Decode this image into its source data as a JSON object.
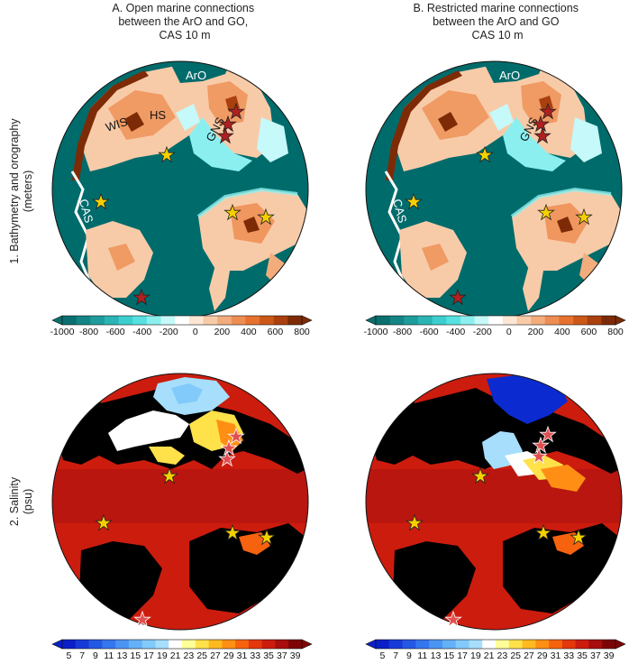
{
  "columns": [
    {
      "id": "A",
      "title_lines": [
        "A. Open marine connections",
        "between the ArO and GO,",
        "CAS 10 m"
      ]
    },
    {
      "id": "B",
      "title_lines": [
        "B. Restricted marine connections",
        "between  the ArO and GO",
        "CAS 10 m"
      ]
    }
  ],
  "rows": [
    {
      "id": "1",
      "label_lines": [
        "1. Bathymetry  and orography",
        "(meters)"
      ]
    },
    {
      "id": "2",
      "label_lines": [
        "2. Salinity",
        "(psu)"
      ]
    }
  ],
  "map_labels": {
    "aro": "ArO",
    "wis": "WIS",
    "hs": "HS",
    "gns": "GNS",
    "cas": "CAS"
  },
  "colors": {
    "ocean": "#006b6b",
    "land_mask": "#000000",
    "salinity_high": "#c81e1e",
    "salinity_low": "#0b2bd0",
    "star_yellow": "#f5d000",
    "star_red": "#b02020"
  },
  "chart_data": [
    {
      "type": "heatmap",
      "name": "bathymetry-orography",
      "colorbar": {
        "ticks": [
          "-1000",
          "-800",
          "-600",
          "-400",
          "-200",
          "0",
          "200",
          "400",
          "600",
          "800"
        ],
        "colors": [
          "#0a6f6f",
          "#138585",
          "#1e9c9c",
          "#2ab4b4",
          "#3ccece",
          "#56e0e0",
          "#8cefef",
          "#c6f9f9",
          "#ffffff",
          "#fde6d4",
          "#f8cba8",
          "#f3ac7c",
          "#ee8d52",
          "#e6722e",
          "#cc5818",
          "#a9400e",
          "#7d2b06"
        ]
      }
    },
    {
      "type": "heatmap",
      "name": "salinity",
      "colorbar": {
        "ticks": [
          "5",
          "7",
          "9",
          "11",
          "13",
          "15",
          "17",
          "19",
          "21",
          "23",
          "25",
          "27",
          "29",
          "31",
          "33",
          "35",
          "37",
          "39"
        ],
        "colors": [
          "#0a1fc8",
          "#163ad8",
          "#2457e4",
          "#3576ee",
          "#4b94f4",
          "#64b1f8",
          "#82cafa",
          "#a6defc",
          "#ffffff",
          "#ffff9a",
          "#ffe14a",
          "#ffba20",
          "#ff8f14",
          "#f7620e",
          "#e4370c",
          "#cc1c0e",
          "#a80c0c",
          "#7d0404"
        ]
      }
    }
  ]
}
